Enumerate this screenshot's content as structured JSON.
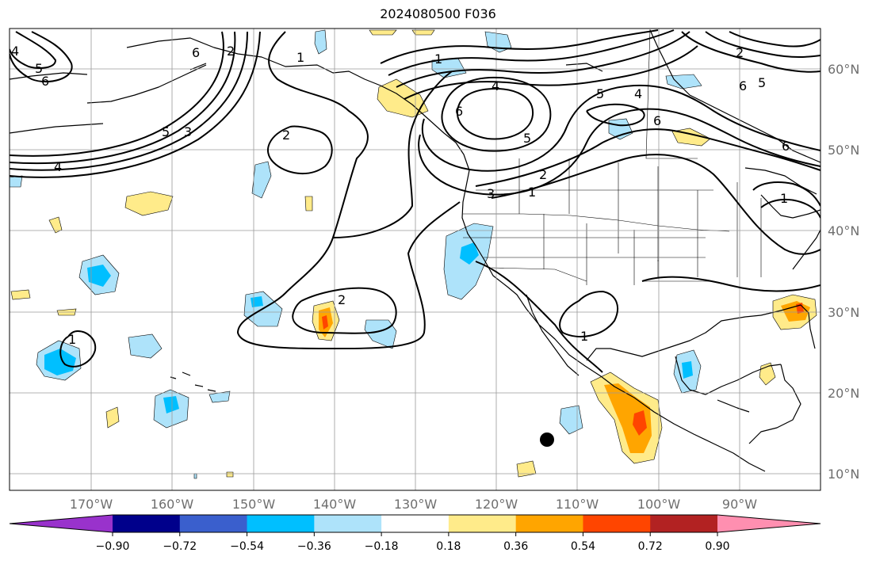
{
  "title": "2024080500 F036",
  "map": {
    "lon_labels": [
      "170°W",
      "160°W",
      "150°W",
      "140°W",
      "130°W",
      "120°W",
      "110°W",
      "100°W",
      "90°W"
    ],
    "lat_labels": [
      "60°N",
      "50°N",
      "40°N",
      "30°N",
      "20°N",
      "10°N"
    ],
    "contour_labels": [
      "1",
      "2",
      "3",
      "4",
      "5",
      "6"
    ],
    "grid": true
  },
  "colorbar": {
    "ticks": [
      "−0.90",
      "−0.72",
      "−0.54",
      "−0.36",
      "−0.18",
      "0.18",
      "0.36",
      "0.54",
      "0.72",
      "0.90"
    ],
    "colors": [
      "#9932cc",
      "#00008b",
      "#3a5fcd",
      "#00bfff",
      "#aee3fa",
      "#ffffff",
      "#ffeb8a",
      "#ffa500",
      "#ff4500",
      "#b22222",
      "#ff8fb0"
    ],
    "extend": "both"
  }
}
